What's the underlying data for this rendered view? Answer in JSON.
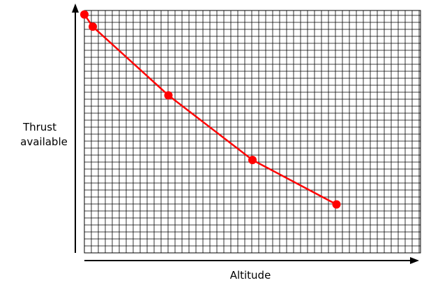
{
  "chart_data": {
    "type": "line",
    "title": "",
    "xlabel": "Altitude",
    "ylabel": [
      "Thrust",
      "available"
    ],
    "xlim": [
      0,
      40
    ],
    "ylim": [
      0,
      30
    ],
    "grid": true,
    "legend": "none",
    "series": [
      {
        "color": "#ff0000",
        "x": [
          0,
          1,
          10,
          20,
          30
        ],
        "y": [
          29.5,
          28,
          19.5,
          11.5,
          6
        ]
      }
    ]
  }
}
